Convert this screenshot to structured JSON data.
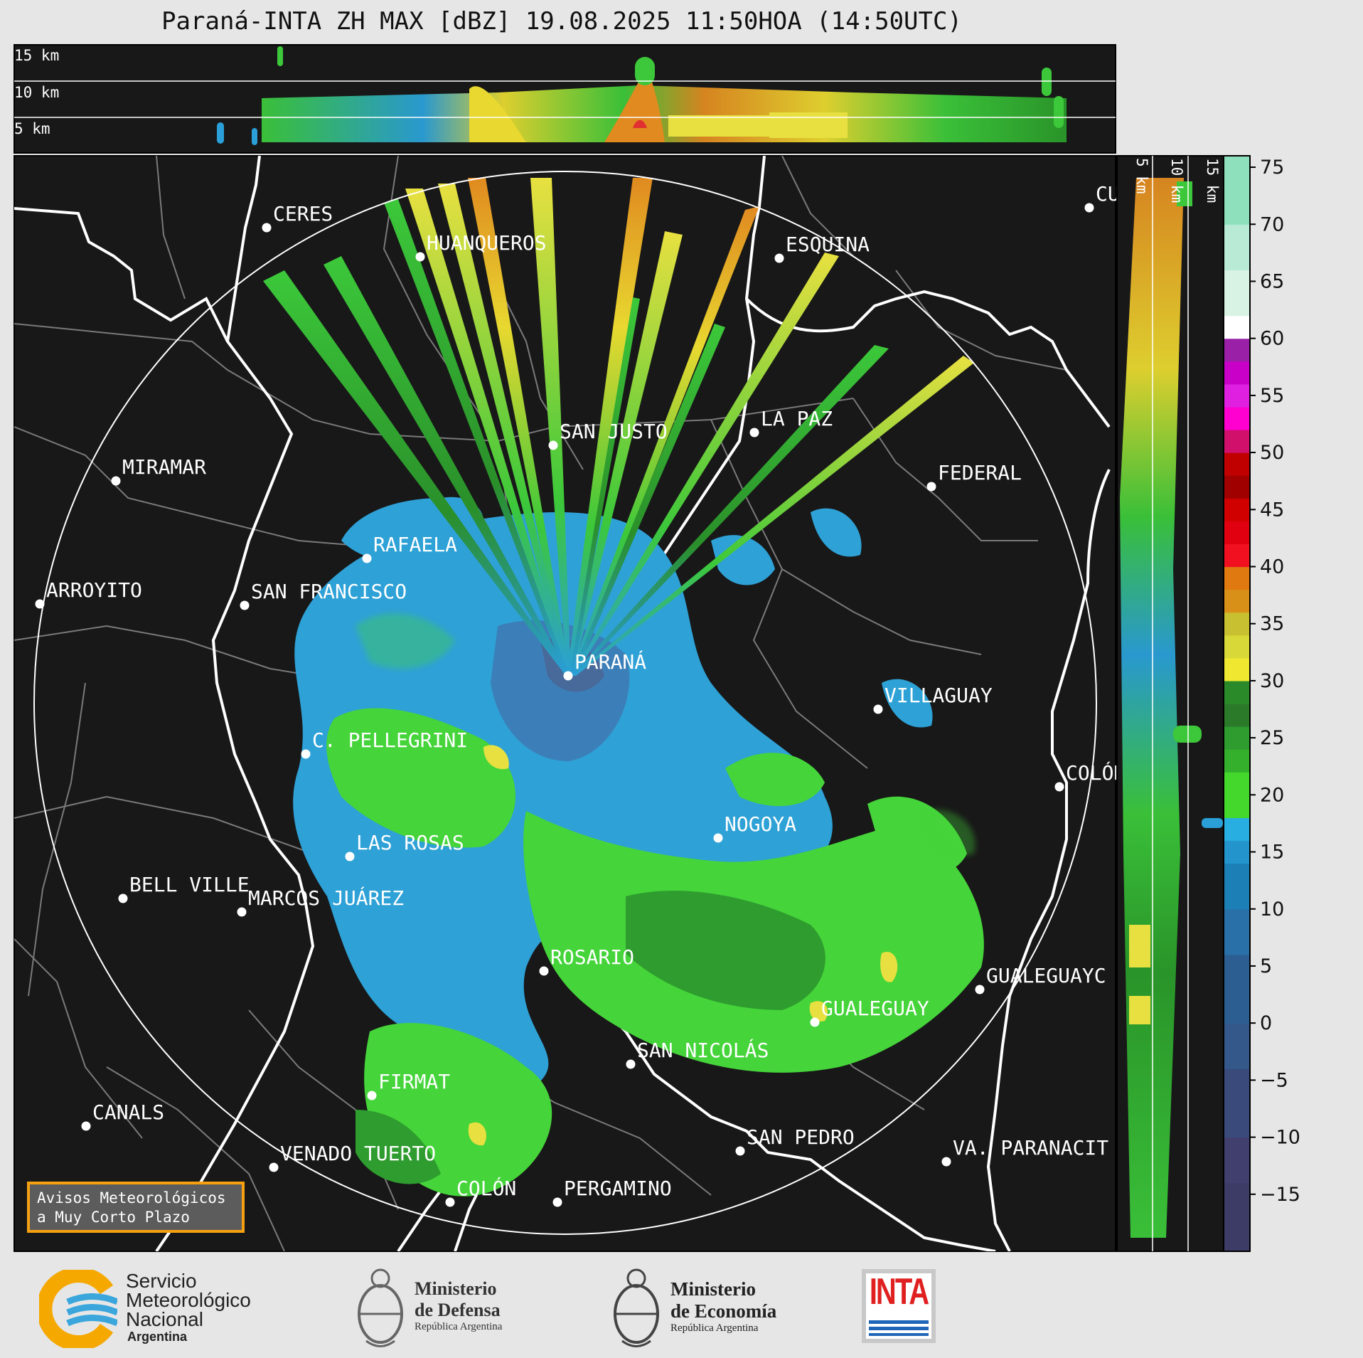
{
  "title": "Paraná-INTA ZH MAX [dBZ] 19.08.2025 11:50HOA (14:50UTC)",
  "top_panel": {
    "height_labels": [
      "15 km",
      "10 km",
      "5 km"
    ]
  },
  "side_panel": {
    "height_labels": [
      "5 km",
      "10 km",
      "15 km"
    ]
  },
  "cities": [
    {
      "id": "ceres",
      "name": "CERES"
    },
    {
      "id": "huanqueros",
      "name": "HUANQUEROS"
    },
    {
      "id": "esquina",
      "name": "ESQUINA"
    },
    {
      "id": "cu",
      "name": "CU"
    },
    {
      "id": "san-justo",
      "name": "SAN JUSTO"
    },
    {
      "id": "la-paz",
      "name": "LA PAZ"
    },
    {
      "id": "miramar",
      "name": "MIRAMAR"
    },
    {
      "id": "federal",
      "name": "FEDERAL"
    },
    {
      "id": "rafaela",
      "name": "RAFAELA"
    },
    {
      "id": "arroyito",
      "name": "ARROYITO"
    },
    {
      "id": "san-francisco",
      "name": "SAN FRANCISCO"
    },
    {
      "id": "parana",
      "name": "PARANÁ"
    },
    {
      "id": "villaguay",
      "name": "VILLAGUAY"
    },
    {
      "id": "c-pellegrini",
      "name": "C. PELLEGRINI"
    },
    {
      "id": "colon-er",
      "name": "COLÓN"
    },
    {
      "id": "nogoya",
      "name": "NOGOYA"
    },
    {
      "id": "las-rosas",
      "name": "LAS ROSAS"
    },
    {
      "id": "bell-ville",
      "name": "BELL VILLE"
    },
    {
      "id": "marcos-juarez",
      "name": "MARCOS JUÁREZ"
    },
    {
      "id": "rosario",
      "name": "ROSARIO"
    },
    {
      "id": "gualeguaychu",
      "name": "GUALEGUAYC"
    },
    {
      "id": "gualeguay",
      "name": "GUALEGUAY"
    },
    {
      "id": "san-nicolas",
      "name": "SAN NICOLÁS"
    },
    {
      "id": "firmat",
      "name": "FIRMAT"
    },
    {
      "id": "canals",
      "name": "CANALS"
    },
    {
      "id": "san-pedro",
      "name": "SAN PEDRO"
    },
    {
      "id": "venado-tuerto",
      "name": "VENADO TUERTO"
    },
    {
      "id": "va-paranacito",
      "name": "VA. PARANACIT"
    },
    {
      "id": "colon-ba",
      "name": "COLÓN"
    },
    {
      "id": "pergamino",
      "name": "PERGAMINO"
    }
  ],
  "colorbar": {
    "ticks": [
      "75",
      "70",
      "65",
      "60",
      "55",
      "50",
      "45",
      "40",
      "35",
      "30",
      "25",
      "20",
      "15",
      "10",
      "5",
      "0",
      "−5",
      "−10",
      "−15"
    ],
    "min": -20,
    "max": 76
  },
  "alert_box": {
    "line1": "Avisos Meteorológicos",
    "line2": "a Muy Corto Plazo"
  },
  "footer": {
    "smn": {
      "line1": "Servicio",
      "line2": "Meteorológico",
      "line3": "Nacional",
      "line4": "Argentina"
    },
    "defensa": {
      "line1": "Ministerio",
      "line2": "de Defensa",
      "line3": "República Argentina"
    },
    "economia": {
      "line1": "Ministerio",
      "line2": "de Economía",
      "line3": "República Argentina"
    },
    "inta": {
      "text": "INTA"
    }
  }
}
